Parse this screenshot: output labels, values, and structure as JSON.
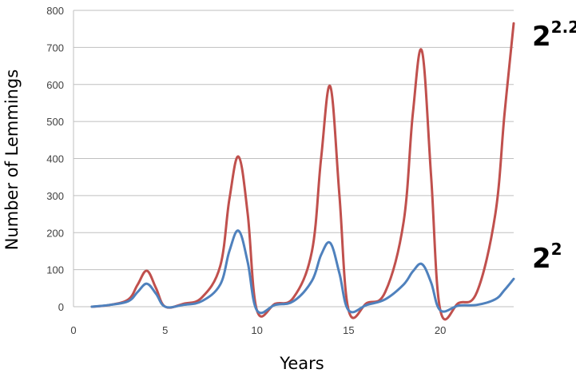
{
  "chart_data": {
    "type": "line",
    "title": "",
    "xlabel": "Years",
    "ylabel": "Number of Lemmings",
    "xlim": [
      0,
      24
    ],
    "ylim": [
      0,
      800
    ],
    "xticks": [
      0,
      5,
      10,
      15,
      20
    ],
    "yticks": [
      0,
      100,
      200,
      300,
      400,
      500,
      600,
      700,
      800
    ],
    "grid": "horizontal",
    "colors": {
      "red": "#c0504d",
      "blue": "#4f81bd",
      "red_label": "#c00000",
      "blue_label": "#0070c0"
    },
    "series": [
      {
        "label_base": "2",
        "label_exp": "2.2",
        "color": "#c0504d",
        "x": [
          1,
          2,
          3,
          3.5,
          4,
          4.5,
          5,
          6,
          7,
          8,
          8.5,
          9,
          9.5,
          10,
          11,
          12,
          13,
          13.5,
          14,
          14.5,
          15,
          16,
          17,
          18,
          18.5,
          19,
          19.5,
          20,
          21,
          22,
          23,
          23.5,
          24
        ],
        "y": [
          0,
          5,
          20,
          60,
          97,
          50,
          0,
          8,
          25,
          110,
          290,
          405,
          250,
          -10,
          8,
          25,
          150,
          400,
          595,
          300,
          -10,
          10,
          40,
          230,
          520,
          690,
          350,
          -10,
          10,
          40,
          250,
          520,
          765
        ]
      },
      {
        "label_base": "2",
        "label_exp": "2",
        "color": "#4f81bd",
        "x": [
          1,
          2,
          3,
          3.5,
          4,
          4.5,
          5,
          6,
          7,
          8,
          8.5,
          9,
          9.5,
          10,
          11,
          12,
          13,
          13.5,
          14,
          14.5,
          15,
          16,
          17,
          18,
          18.5,
          19,
          19.5,
          20,
          21,
          22,
          23,
          23.5,
          24
        ],
        "y": [
          0,
          5,
          15,
          40,
          62,
          35,
          0,
          5,
          15,
          60,
          150,
          205,
          120,
          -10,
          5,
          15,
          70,
          140,
          172,
          90,
          -10,
          5,
          20,
          60,
          95,
          115,
          65,
          -10,
          3,
          5,
          20,
          45,
          75
        ]
      }
    ]
  }
}
